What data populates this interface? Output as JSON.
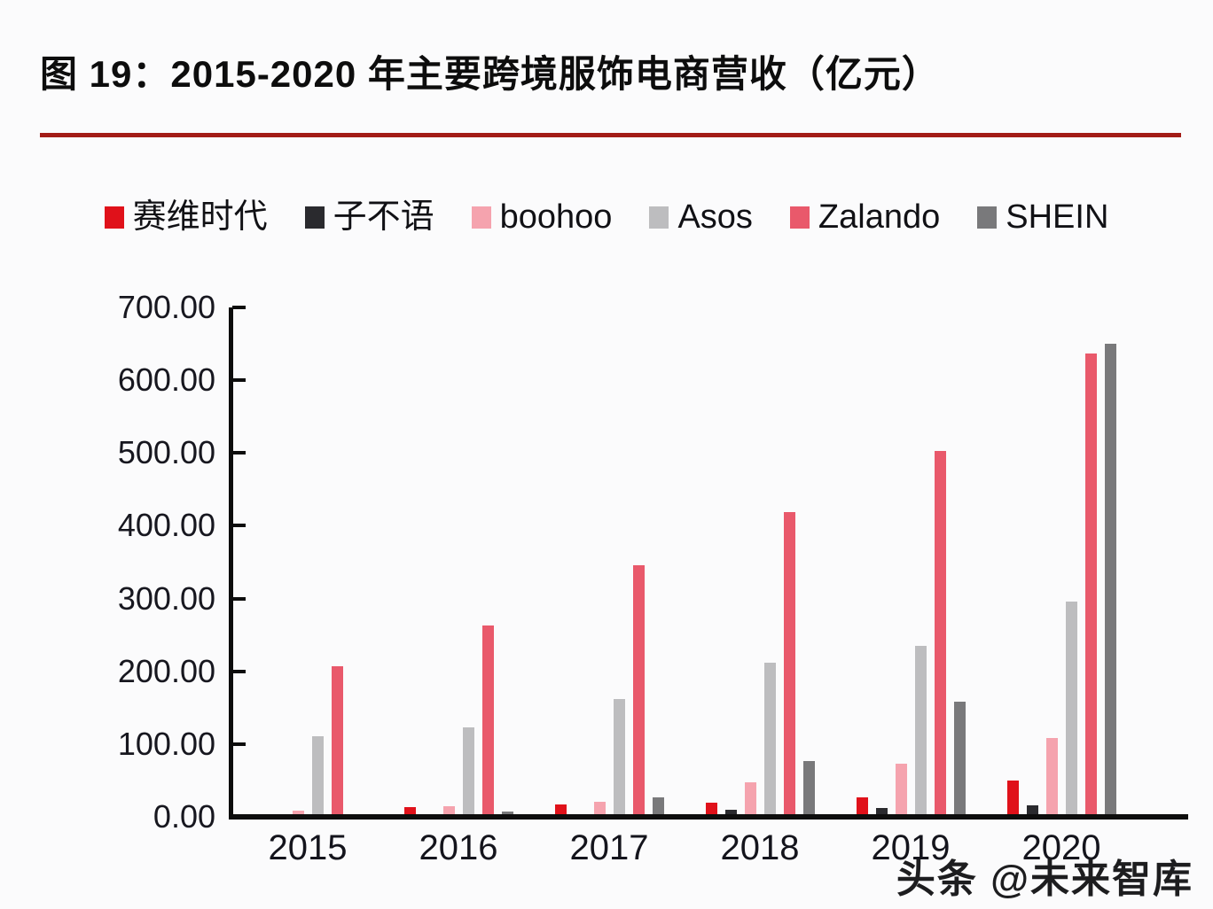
{
  "header": {
    "title": "图 19：2015-2020 年主要跨境服饰电商营收（亿元）",
    "divider_color": "#a31c17"
  },
  "watermark": {
    "text": "头条 @未来智库"
  },
  "chart_data": {
    "type": "bar",
    "title": "2015-2020 年主要跨境服饰电商营收（亿元）",
    "unit": "亿元",
    "categories": [
      "2015",
      "2016",
      "2017",
      "2018",
      "2019",
      "2020"
    ],
    "series": [
      {
        "name": "赛维时代",
        "color": "#e0111a",
        "values": [
          2,
          13,
          17,
          20,
          27,
          50
        ]
      },
      {
        "name": "子不语",
        "color": "#2a2a2e",
        "values": [
          0,
          0,
          0,
          10,
          12,
          16
        ]
      },
      {
        "name": "boohoo",
        "color": "#f5a3ae",
        "values": [
          9,
          15,
          21,
          48,
          73,
          108
        ]
      },
      {
        "name": "Asos",
        "color": "#bdbdbf",
        "values": [
          111,
          123,
          162,
          212,
          235,
          296
        ]
      },
      {
        "name": "Zalando",
        "color": "#e9596b",
        "values": [
          207,
          263,
          346,
          419,
          503,
          637
        ]
      },
      {
        "name": "SHEIN",
        "color": "#79797b",
        "values": [
          0,
          7,
          27,
          77,
          158,
          650
        ]
      }
    ],
    "xlabel": "",
    "ylabel": "",
    "ylim": [
      0,
      700
    ],
    "ytick_step": 100,
    "ytick_decimals": 2,
    "grid": false,
    "legend_position": "top",
    "axis_color": "#0d0d0d"
  }
}
